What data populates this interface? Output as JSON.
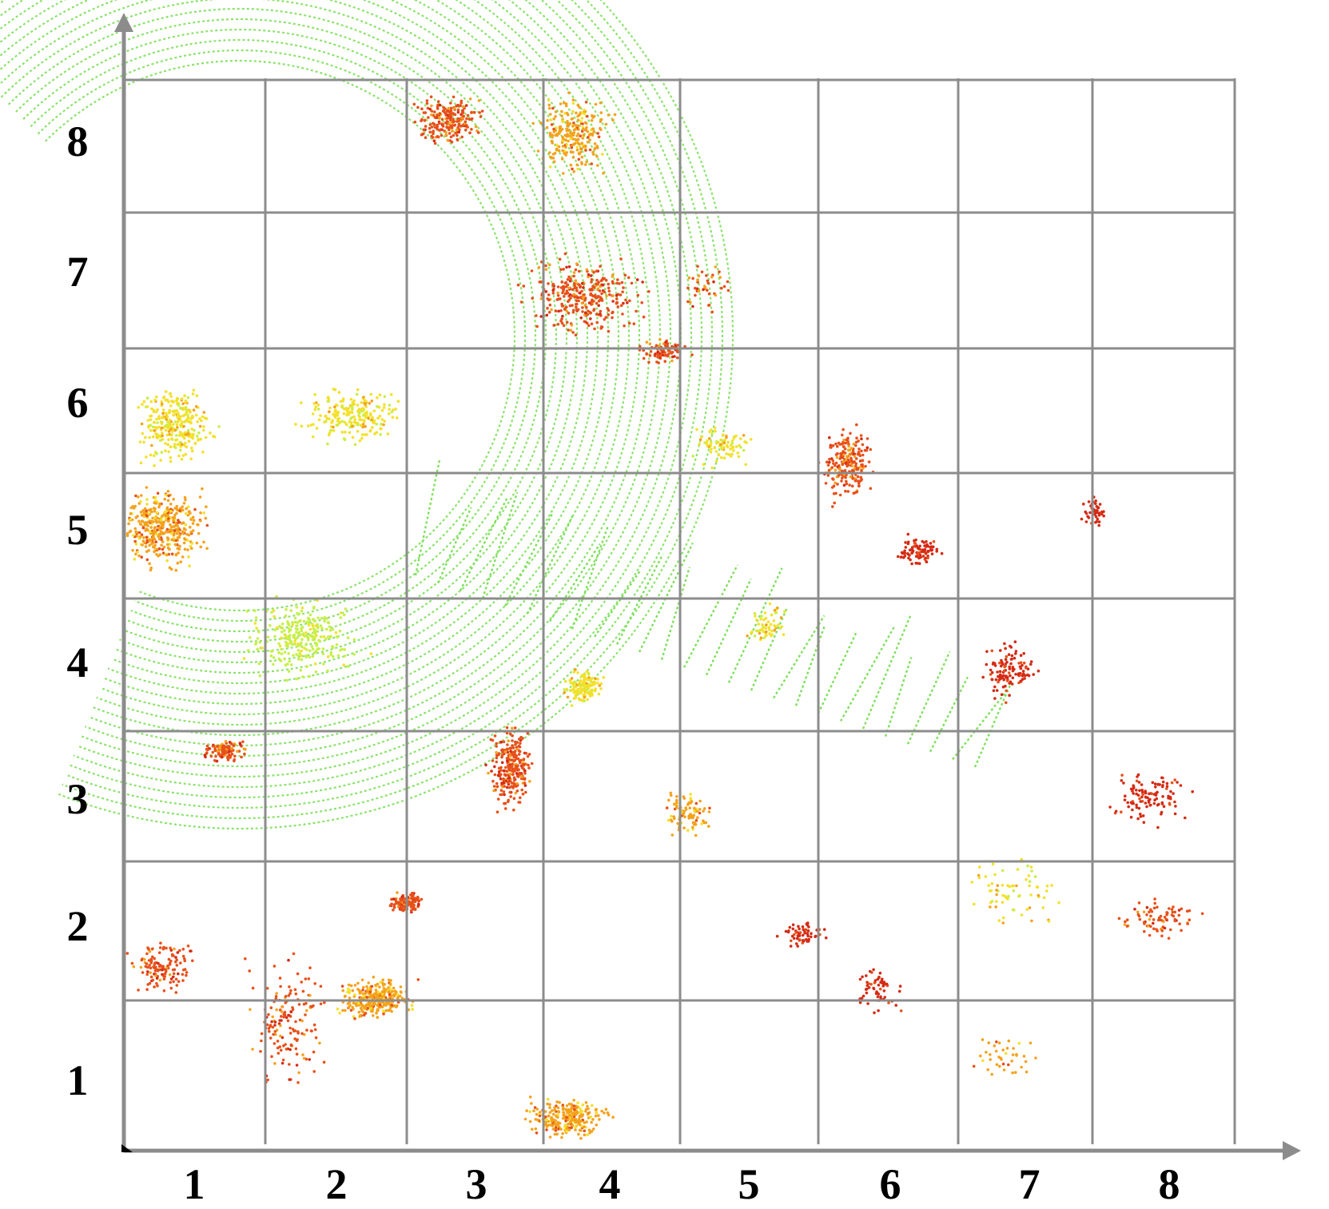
{
  "axes": {
    "x_ticks": [
      "1",
      "2",
      "3",
      "4",
      "5",
      "6",
      "7",
      "8"
    ],
    "y_ticks": [
      "1",
      "2",
      "3",
      "4",
      "5",
      "6",
      "7",
      "8"
    ]
  },
  "grid": {
    "rows": 8,
    "cols": 8,
    "visible": true
  },
  "colors": {
    "grid": "#8c8c8c",
    "axis": "#8c8c8c",
    "ground": "#7de05a",
    "low": "#c8ef4a",
    "mid": "#f3e12a",
    "high": "#f4a21c",
    "obstacle": "#e8501a",
    "top": "#d42a14"
  },
  "legend": "none"
}
